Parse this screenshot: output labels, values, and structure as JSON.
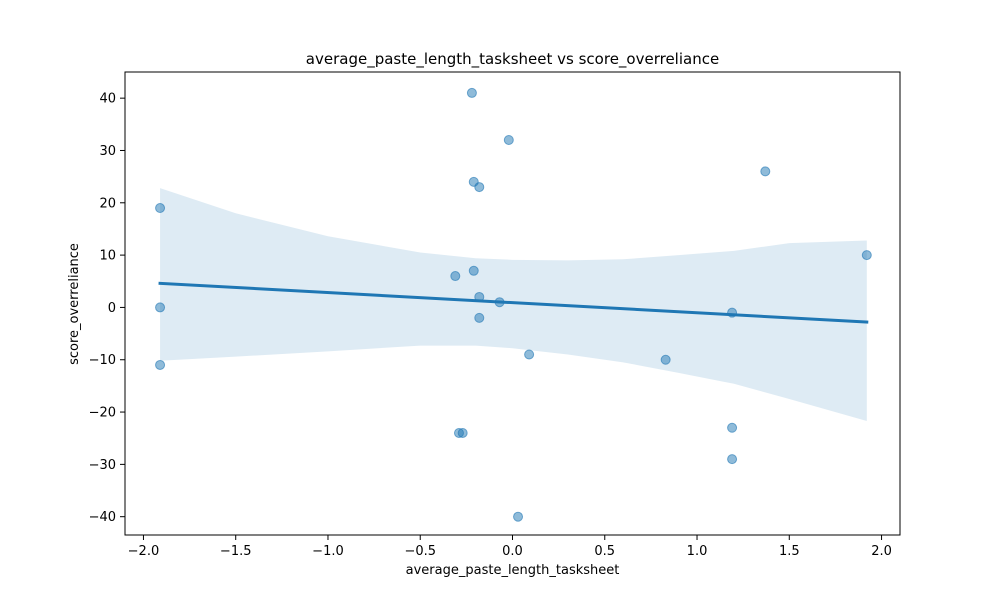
{
  "chart_data": {
    "type": "scatter",
    "title": "average_paste_length_tasksheet vs score_overreliance",
    "xlabel": "average_paste_length_tasksheet",
    "ylabel": "score_overreliance",
    "xlim": [
      -2.1,
      2.1
    ],
    "ylim": [
      -43.5,
      45
    ],
    "xticks": [
      -2.0,
      -1.5,
      -1.0,
      -0.5,
      0.0,
      0.5,
      1.0,
      1.5,
      2.0
    ],
    "xtick_labels": [
      "−2.0",
      "−1.5",
      "−1.0",
      "−0.5",
      "0.0",
      "0.5",
      "1.0",
      "1.5",
      "2.0"
    ],
    "yticks": [
      -40,
      -30,
      -20,
      -10,
      0,
      10,
      20,
      30,
      40
    ],
    "ytick_labels": [
      "−40",
      "−30",
      "−20",
      "−10",
      "0",
      "10",
      "20",
      "30",
      "40"
    ],
    "grid": false,
    "points": [
      {
        "x": -1.91,
        "y": 19
      },
      {
        "x": -1.91,
        "y": 0
      },
      {
        "x": -1.91,
        "y": -11
      },
      {
        "x": -0.31,
        "y": 6
      },
      {
        "x": -0.29,
        "y": -24
      },
      {
        "x": -0.27,
        "y": -24
      },
      {
        "x": -0.22,
        "y": 41
      },
      {
        "x": -0.21,
        "y": 24
      },
      {
        "x": -0.21,
        "y": 7
      },
      {
        "x": -0.18,
        "y": 23
      },
      {
        "x": -0.18,
        "y": 2
      },
      {
        "x": -0.18,
        "y": -2
      },
      {
        "x": -0.07,
        "y": 1
      },
      {
        "x": -0.02,
        "y": 32
      },
      {
        "x": 0.03,
        "y": -40
      },
      {
        "x": 0.09,
        "y": -9
      },
      {
        "x": 0.83,
        "y": -10
      },
      {
        "x": 1.19,
        "y": -1
      },
      {
        "x": 1.19,
        "y": -23
      },
      {
        "x": 1.19,
        "y": -29
      },
      {
        "x": 1.37,
        "y": 26
      },
      {
        "x": 1.92,
        "y": 10
      }
    ],
    "regression_line": {
      "x": [
        -1.91,
        1.92
      ],
      "y": [
        4.6,
        -2.8
      ]
    },
    "confidence_band": {
      "x": [
        -1.91,
        -1.5,
        -1.0,
        -0.5,
        -0.2,
        0.0,
        0.3,
        0.6,
        0.9,
        1.2,
        1.5,
        1.92
      ],
      "upper": [
        22.8,
        18.0,
        13.6,
        10.5,
        9.4,
        9.1,
        9.0,
        9.2,
        10.0,
        10.8,
        12.3,
        12.8
      ],
      "lower": [
        -10.2,
        -9.4,
        -8.4,
        -7.3,
        -7.3,
        -7.8,
        -9.0,
        -10.5,
        -12.5,
        -14.6,
        -17.5,
        -21.7
      ]
    },
    "colors": {
      "points": "#1f77b4",
      "line": "#1f77b4",
      "band": "#1f77b4"
    }
  }
}
